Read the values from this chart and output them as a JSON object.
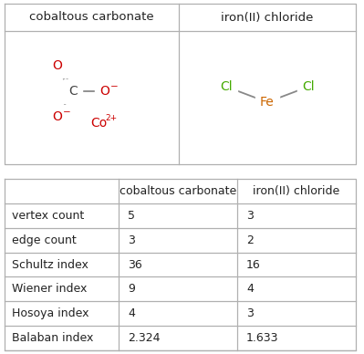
{
  "title_col1": "cobaltous carbonate",
  "title_col2": "iron(II) chloride",
  "rows": [
    [
      "vertex count",
      "5",
      "3"
    ],
    [
      "edge count",
      "3",
      "2"
    ],
    [
      "Schultz index",
      "36",
      "16"
    ],
    [
      "Wiener index",
      "9",
      "4"
    ],
    [
      "Hosoya index",
      "4",
      "3"
    ],
    [
      "Balaban index",
      "2.324",
      "1.633"
    ]
  ],
  "bg_color": "#ffffff",
  "border_color": "#b0b0b0",
  "text_color": "#222222",
  "red_color": "#cc0000",
  "green_color": "#44aa00",
  "orange_color": "#cc6600",
  "dark_color": "#444444"
}
